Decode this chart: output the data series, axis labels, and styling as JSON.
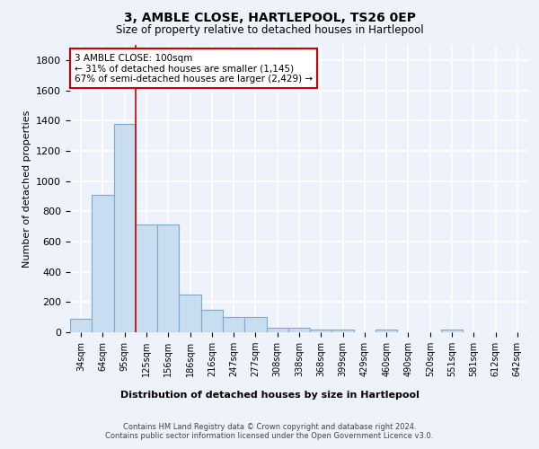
{
  "title1": "3, AMBLE CLOSE, HARTLEPOOL, TS26 0EP",
  "title2": "Size of property relative to detached houses in Hartlepool",
  "xlabel": "Distribution of detached houses by size in Hartlepool",
  "ylabel": "Number of detached properties",
  "categories": [
    "34sqm",
    "64sqm",
    "95sqm",
    "125sqm",
    "156sqm",
    "186sqm",
    "216sqm",
    "247sqm",
    "277sqm",
    "308sqm",
    "338sqm",
    "368sqm",
    "399sqm",
    "429sqm",
    "460sqm",
    "490sqm",
    "520sqm",
    "551sqm",
    "581sqm",
    "612sqm",
    "642sqm"
  ],
  "values": [
    90,
    910,
    1380,
    710,
    710,
    248,
    148,
    100,
    100,
    30,
    30,
    15,
    15,
    0,
    15,
    0,
    0,
    20,
    0,
    0,
    0
  ],
  "bar_color": "#c8ddf0",
  "bar_edge_color": "#7aaace",
  "vline_x_index": 2,
  "vline_color": "#cc0000",
  "annotation_text": "3 AMBLE CLOSE: 100sqm\n← 31% of detached houses are smaller (1,145)\n67% of semi-detached houses are larger (2,429) →",
  "annotation_box_facecolor": "#ffffff",
  "annotation_box_edgecolor": "#cc0000",
  "ylim": [
    0,
    1900
  ],
  "yticks": [
    0,
    200,
    400,
    600,
    800,
    1000,
    1200,
    1400,
    1600,
    1800
  ],
  "bg_color": "#eef2fa",
  "grid_color": "#ffffff",
  "footer": "Contains HM Land Registry data © Crown copyright and database right 2024.\nContains public sector information licensed under the Open Government Licence v3.0."
}
